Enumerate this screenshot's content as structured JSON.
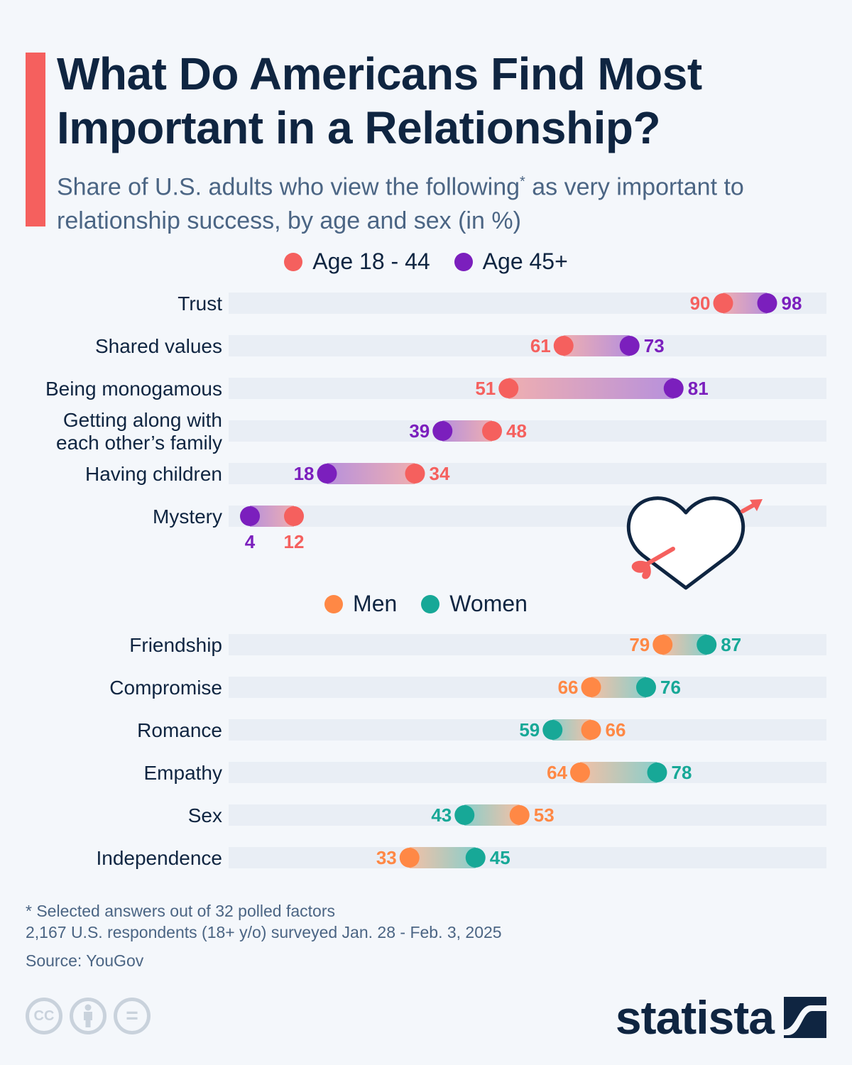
{
  "header": {
    "title": "What Do Americans Find Most Important in a Relationship?",
    "subtitle_part1": "Share of U.S. adults who view the following",
    "subtitle_asterisk": "*",
    "subtitle_part2": " as very important to relationship success, by age and sex (in %)"
  },
  "colors": {
    "accent": "#f5605e",
    "age_18_44": "#f5605e",
    "age_45_plus": "#7b1fbd",
    "men": "#ff8845",
    "women": "#17a897",
    "track": "#e9eef5",
    "text_dark": "#0f2541",
    "text_muted": "#4b6584"
  },
  "legend_age": [
    {
      "label": "Age 18 - 44",
      "color": "#f5605e"
    },
    {
      "label": "Age 45+",
      "color": "#7b1fbd"
    }
  ],
  "legend_sex": [
    {
      "label": "Men",
      "color": "#ff8845"
    },
    {
      "label": "Women",
      "color": "#17a897"
    }
  ],
  "chart_data": [
    {
      "type": "dumbbell",
      "title": "By age",
      "xlabel": "",
      "ylabel": "",
      "xlim": [
        0,
        100
      ],
      "grid": false,
      "legend_position": "top-center",
      "categories": [
        "Trust",
        "Shared values",
        "Being monogamous",
        "Getting along with each other’s family",
        "Having children",
        "Mystery"
      ],
      "category_lines": [
        [
          "Trust"
        ],
        [
          "Shared values"
        ],
        [
          "Being monogamous"
        ],
        [
          "Getting along with",
          "each other’s family"
        ],
        [
          "Having children"
        ],
        [
          "Mystery"
        ]
      ],
      "series": [
        {
          "name": "Age 18 - 44",
          "color": "#f5605e",
          "values": [
            90,
            61,
            51,
            48,
            34,
            12
          ]
        },
        {
          "name": "Age 45+",
          "color": "#7b1fbd",
          "values": [
            98,
            73,
            81,
            39,
            18,
            4
          ]
        }
      ]
    },
    {
      "type": "dumbbell",
      "title": "By sex",
      "xlabel": "",
      "ylabel": "",
      "xlim": [
        0,
        100
      ],
      "grid": false,
      "legend_position": "top-center",
      "categories": [
        "Friendship",
        "Compromise",
        "Romance",
        "Empathy",
        "Sex",
        "Independence"
      ],
      "category_lines": [
        [
          "Friendship"
        ],
        [
          "Compromise"
        ],
        [
          "Romance"
        ],
        [
          "Empathy"
        ],
        [
          "Sex"
        ],
        [
          "Independence"
        ]
      ],
      "series": [
        {
          "name": "Men",
          "color": "#ff8845",
          "values": [
            79,
            66,
            66,
            64,
            53,
            33
          ]
        },
        {
          "name": "Women",
          "color": "#17a897",
          "values": [
            87,
            76,
            59,
            78,
            43,
            45
          ]
        }
      ]
    }
  ],
  "footer": {
    "note": "* Selected answers out of 32 polled factors",
    "survey": "2,167 U.S. respondents (18+ y/o) surveyed Jan. 28 - Feb. 3, 2025",
    "source": "Source: YouGov"
  },
  "license_icons": [
    {
      "icon": "cc-icon",
      "glyph": "CC"
    },
    {
      "icon": "attribution-icon",
      "glyph": "i"
    },
    {
      "icon": "no-derivatives-icon",
      "glyph": "="
    }
  ],
  "brand": {
    "name": "statista"
  }
}
